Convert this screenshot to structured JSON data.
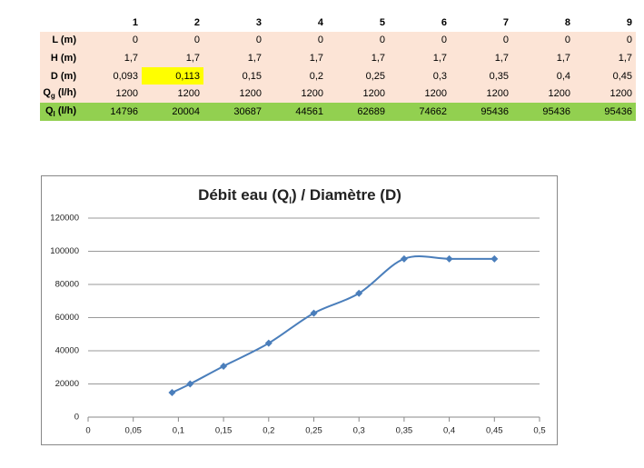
{
  "table": {
    "columns": [
      "1",
      "2",
      "3",
      "4",
      "5",
      "6",
      "7",
      "8",
      "9"
    ],
    "rows": [
      {
        "label": "L (m)",
        "cells": [
          "0",
          "0",
          "0",
          "0",
          "0",
          "0",
          "0",
          "0",
          "0"
        ]
      },
      {
        "label": "H (m)",
        "cells": [
          "1,7",
          "1,7",
          "1,7",
          "1,7",
          "1,7",
          "1,7",
          "1,7",
          "1,7",
          "1,7"
        ]
      },
      {
        "label": "D (m)",
        "cells": [
          "0,093",
          "0,113",
          "0,15",
          "0,2",
          "0,25",
          "0,3",
          "0,35",
          "0,4",
          "0,45"
        ]
      },
      {
        "label": {
          "main": "Q",
          "sub": "g",
          "unit": " (l/h)"
        },
        "cells": [
          "1200",
          "1200",
          "1200",
          "1200",
          "1200",
          "1200",
          "1200",
          "1200",
          "1200"
        ]
      },
      {
        "label": {
          "main": "Q",
          "sub": "l",
          "unit": " (l/h)"
        },
        "cells": [
          "14796",
          "20004",
          "30687",
          "44561",
          "62689",
          "74662",
          "95436",
          "95436",
          "95436"
        ]
      }
    ]
  },
  "chart_data": {
    "type": "line",
    "title": {
      "main": "Débit eau (Q",
      "sub": "l",
      "rest": ") / Diamètre (D)"
    },
    "x": [
      0.093,
      0.113,
      0.15,
      0.2,
      0.25,
      0.3,
      0.35,
      0.4,
      0.45
    ],
    "series": [
      {
        "color": "#4a7ebb",
        "values": [
          14796,
          20004,
          30687,
          44561,
          62689,
          74662,
          95436,
          95436,
          95436
        ]
      }
    ],
    "xlim": [
      0,
      0.5
    ],
    "xticks": [
      0,
      {
        "value": 0.05,
        "label": "0,05"
      },
      {
        "value": 0.1,
        "label": "0,1"
      },
      {
        "value": 0.15,
        "label": "0,15"
      },
      {
        "value": 0.2,
        "label": "0,2"
      },
      {
        "value": 0.25,
        "label": "0,25"
      },
      {
        "value": 0.3,
        "label": "0,3"
      },
      {
        "value": 0.35,
        "label": "0,35"
      },
      {
        "value": 0.4,
        "label": "0,4"
      },
      {
        "value": 0.45,
        "label": "0,45"
      },
      {
        "value": 0.5,
        "label": "0,5"
      }
    ],
    "ylim": [
      0,
      120000
    ],
    "yticks": [
      0,
      20000,
      40000,
      60000,
      80000,
      100000,
      120000
    ],
    "grid": true
  }
}
